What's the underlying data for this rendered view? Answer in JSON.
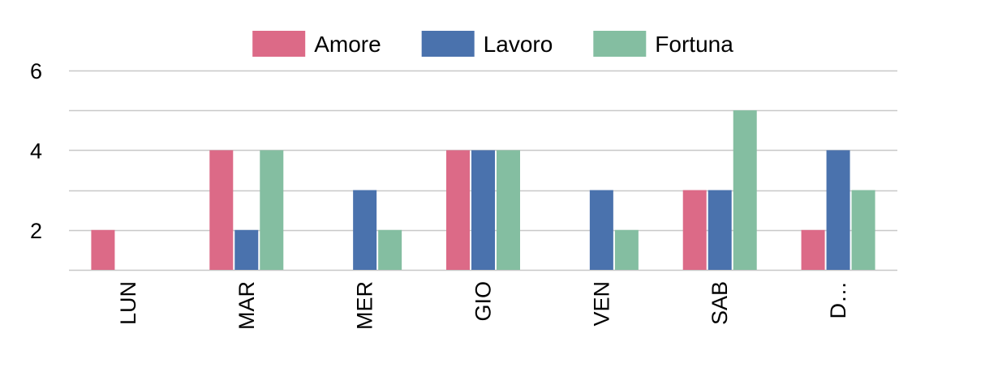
{
  "chart_data": {
    "type": "bar",
    "categories": [
      "LUN",
      "MAR",
      "MER",
      "GIO",
      "VEN",
      "SAB",
      "D…"
    ],
    "series": [
      {
        "name": "Amore",
        "color": "#dc6a87",
        "values": [
          2,
          4,
          0,
          4,
          0,
          3,
          2
        ]
      },
      {
        "name": "Lavoro",
        "color": "#4a72ad",
        "values": [
          0,
          2,
          3,
          4,
          3,
          3,
          4
        ]
      },
      {
        "name": "Fortuna",
        "color": "#84bea1",
        "values": [
          0,
          4,
          2,
          4,
          2,
          5,
          3
        ]
      }
    ],
    "y_ticks": [
      2,
      4,
      6
    ],
    "ylim": [
      1,
      6
    ],
    "grid": true,
    "legend_position": "top-center",
    "title": "",
    "xlabel": "",
    "ylabel": ""
  }
}
